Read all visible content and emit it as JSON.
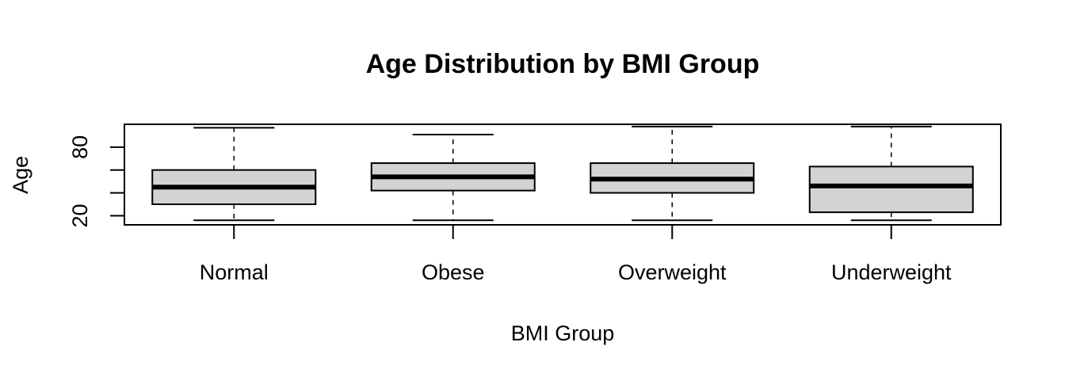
{
  "chart_data": {
    "type": "box",
    "title": "Age Distribution by BMI Group",
    "xlabel": "BMI Group",
    "ylabel": "Age",
    "ylim": [
      12,
      100
    ],
    "y_ticks": [
      20,
      40,
      60,
      80
    ],
    "y_tick_labels": [
      "20",
      "",
      "",
      "80"
    ],
    "categories": [
      "Normal",
      "Obese",
      "Overweight",
      "Underweight"
    ],
    "boxes": [
      {
        "category": "Normal",
        "whisker_low": 16,
        "q1": 30,
        "median": 45,
        "q3": 60,
        "whisker_high": 97
      },
      {
        "category": "Obese",
        "whisker_low": 16,
        "q1": 42,
        "median": 54,
        "q3": 66,
        "whisker_high": 91
      },
      {
        "category": "Overweight",
        "whisker_low": 16,
        "q1": 40,
        "median": 52,
        "q3": 66,
        "whisker_high": 98
      },
      {
        "category": "Underweight",
        "whisker_low": 16,
        "q1": 23,
        "median": 46,
        "q3": 63,
        "whisker_high": 98
      }
    ],
    "box_fill": "#d3d3d3",
    "line_color": "#000000",
    "grid": false,
    "legend": "none"
  }
}
